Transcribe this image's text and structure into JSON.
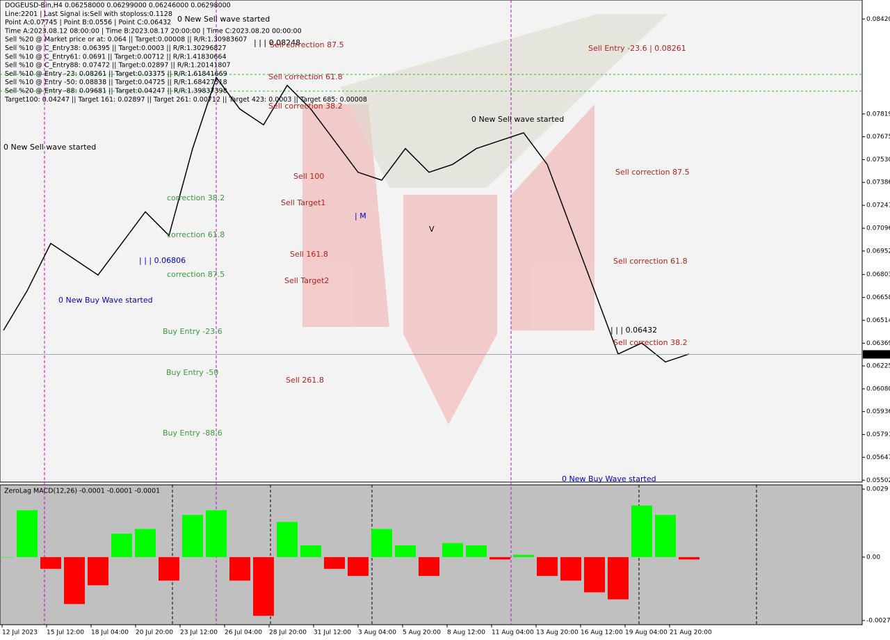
{
  "header": {
    "lines": [
      "DOGEUSD-Bin,H4  0.06258000 0.06299000 0.06246000 0.06298000",
      "Line:2201 | Last Signal is:Sell with stoploss:0.1128",
      "Point A:0.07745 | Point B:0.0556 | Point C:0.06432",
      "Time A:2023.08.12 08:00:00 | Time B:2023.08.17 20:00:00 | Time C:2023.08.20 00:00:00",
      "Sell %20 @ Market price or at: 0.064 || Target:0.00008 || R/R:1.30983607",
      "Sell %10 @ C_Entry38: 0.06395 || Target:0.0003 || R/R:1.30296827",
      "Sell %10 @ C_Entry61: 0.0691 || Target:0.00712 || R/R:1.41830664",
      "Sell %10 @ C_Entry88: 0.07472 || Target:0.02897 || R/R:1.20141807",
      "Sell %10 @ Entry -23: 0.08261 || Target:0.03375 || R/R:1.61841669",
      "Sell %10 @ Entry -50: 0.08838 || Target:0.04725 || R/R:1.68427518",
      "Sell %20 @ Entry -88: 0.09681 || Target:0.04247 || R/R:1.39837398",
      "Target100: 0.04247 || Target 161: 0.02897 || Target 261: 0.00712 || Target 423: 0.0003 || Target 685: 0.00008"
    ]
  },
  "annotations": [
    "0 New Sell wave started",
    "0 New Sell wave started",
    "0 New Sell wave started",
    "| | | 0.08248",
    "Sell correction 87.5",
    "Sell correction 61.8",
    "Sell correction 38.2",
    "Sell 100",
    "Sell Target1",
    "Sell 161.8",
    "Sell Target2",
    "Sell  261.8",
    "Sell Entry -23.6 | 0.08261",
    "Sell correction 87.5",
    "Sell correction 61.8",
    "| | | 0.06432",
    "Sell correction 38.2",
    "correction 38.2",
    "correction 61.8",
    "| | | 0.06806",
    "correction 87.5",
    "0 New Buy Wave started",
    "Buy Entry -23.6",
    "Buy Entry -50",
    "Buy Entry -88.6",
    "0 New Buy Wave started",
    "| M",
    "V"
  ],
  "chart_data": [
    {
      "type": "line",
      "color": "#000000",
      "values": [
        0.0645,
        0.067,
        0.07,
        0.069,
        0.068,
        0.07,
        0.072,
        0.0705,
        0.076,
        0.0805,
        0.0785,
        0.0775,
        0.08,
        0.0785,
        0.0765,
        0.0745,
        0.074,
        0.076,
        0.0745,
        0.075,
        0.076,
        0.0765,
        0.077,
        0.075,
        0.071,
        0.067,
        0.063,
        0.0637,
        0.0625,
        0.063
      ],
      "ylim": [
        0.0549,
        0.0854
      ],
      "yticks": [
        {
          "value": 0.0842,
          "label": "0.08420"
        },
        {
          "value": 0.07819,
          "label": "0.07819"
        },
        {
          "value": 0.07675,
          "label": "0.07675"
        },
        {
          "value": 0.0753,
          "label": "0.07530"
        },
        {
          "value": 0.07386,
          "label": "0.07386"
        },
        {
          "value": 0.07241,
          "label": "0.07241"
        },
        {
          "value": 0.07096,
          "label": "0.07096"
        },
        {
          "value": 0.06952,
          "label": "0.06952"
        },
        {
          "value": 0.06803,
          "label": "0.06803"
        },
        {
          "value": 0.06658,
          "label": "0.06658"
        },
        {
          "value": 0.06514,
          "label": "0.06514"
        },
        {
          "value": 0.06369,
          "label": "0.06369"
        },
        {
          "value": 0.06225,
          "label": "0.06225"
        },
        {
          "value": 0.0608,
          "label": "0.06080"
        },
        {
          "value": 0.05936,
          "label": "0.05936"
        },
        {
          "value": 0.05791,
          "label": "0.05791"
        },
        {
          "value": 0.05647,
          "label": "0.05647"
        },
        {
          "value": 0.05502,
          "label": "0.05502"
        }
      ],
      "current_price": 0.06298,
      "time_labels": [
        "12 Jul 2023",
        "15 Jul 12:00",
        "18 Jul 04:00",
        "20 Jul 20:00",
        "23 Jul 12:00",
        "26 Jul 04:00",
        "28 Jul 20:00",
        "31 Jul 12:00",
        "3 Aug 04:00",
        "5 Aug 20:00",
        "8 Aug 12:00",
        "11 Aug 04:00",
        "13 Aug 20:00",
        "16 Aug 12:00",
        "19 Aug 04:00",
        "21 Aug 20:00"
      ]
    },
    {
      "type": "bar",
      "title": "ZeroLag MACD(12,26) -0.0001 -0.0001 -0.0001",
      "values": [
        0.0,
        0.002,
        -0.0005,
        -0.002,
        -0.0012,
        0.001,
        0.0012,
        -0.001,
        0.0018,
        0.002,
        -0.001,
        -0.0025,
        0.0015,
        0.0005,
        -0.0005,
        -0.0008,
        0.0012,
        0.0005,
        -0.0008,
        0.0006,
        0.0005,
        -0.0001,
        0.0001,
        -0.0008,
        -0.001,
        -0.0015,
        -0.0018,
        0.0022,
        0.0018,
        -0.0001
      ],
      "ylim": [
        -0.00288,
        0.00308
      ],
      "yticks": [
        {
          "value": 0.0029,
          "label": "0.0029"
        },
        {
          "value": 0,
          "label": "0.00"
        },
        {
          "value": -0.0027,
          "label": "-0.0027"
        }
      ],
      "colors": {
        "positive": "#00ff00",
        "negative": "#ff0000"
      }
    }
  ]
}
